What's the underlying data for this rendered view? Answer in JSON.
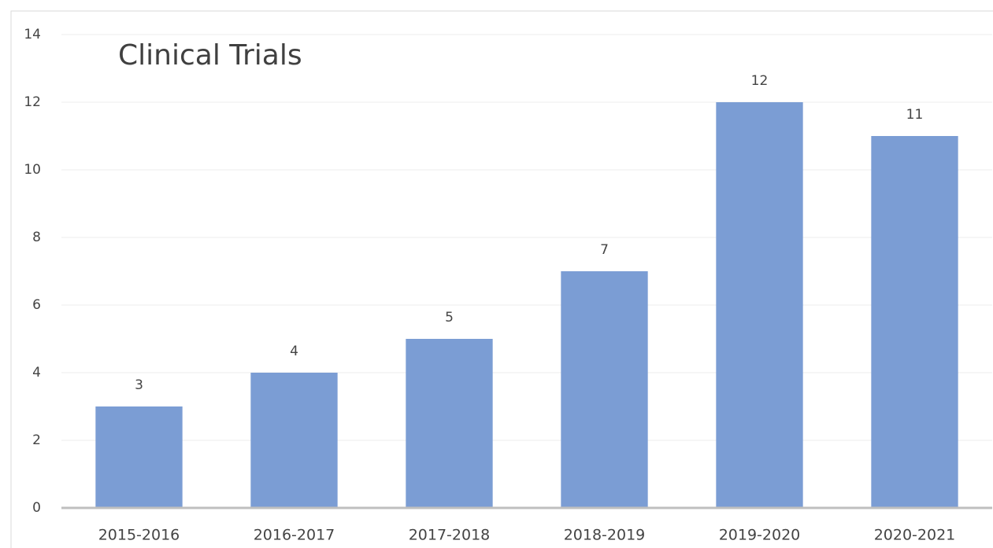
{
  "chart_data": {
    "type": "bar",
    "title": "Clinical Trials",
    "categories": [
      "2015-2016",
      "2016-2017",
      "2017-2018",
      "2018-2019",
      "2019-2020",
      "2020-2021"
    ],
    "values": [
      3,
      4,
      5,
      7,
      12,
      11
    ],
    "color": "#7b9dd4",
    "ylim": [
      0,
      14
    ],
    "yticks": [
      0,
      2,
      4,
      6,
      8,
      10,
      12,
      14
    ],
    "grid": true,
    "data_labels": true
  }
}
